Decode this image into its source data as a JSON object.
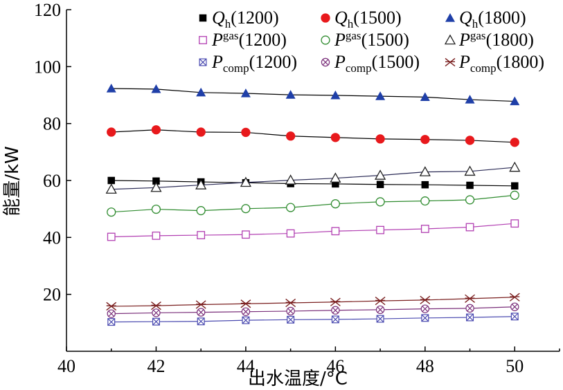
{
  "chart_data": {
    "type": "line",
    "title": "",
    "xlabel": "出水温度/°C",
    "ylabel": "能量/kW",
    "xlim": [
      40,
      51
    ],
    "ylim": [
      0,
      120
    ],
    "xticks": [
      40,
      42,
      44,
      46,
      48,
      50
    ],
    "yticks": [
      20,
      40,
      60,
      80,
      100,
      120
    ],
    "grid": false,
    "legend_position": "top",
    "x": [
      41,
      42,
      43,
      44,
      45,
      46,
      47,
      48,
      49,
      50
    ],
    "series": [
      {
        "name": "Qh(1200)",
        "symbol": "Q",
        "sub": "h",
        "rpm": "(1200)",
        "marker": "square-filled",
        "color": "#000000",
        "line_color": "#000000",
        "values": [
          60.0,
          59.8,
          59.5,
          59.2,
          58.9,
          58.8,
          58.6,
          58.5,
          58.3,
          58.1
        ]
      },
      {
        "name": "Qh(1500)",
        "symbol": "Q",
        "sub": "h",
        "rpm": "(1500)",
        "marker": "circle-filled",
        "color": "#e8191c",
        "line_color": "#000000",
        "values": [
          77.0,
          77.8,
          77.0,
          76.9,
          75.6,
          75.1,
          74.6,
          74.4,
          74.1,
          73.4
        ]
      },
      {
        "name": "Qh(1800)",
        "symbol": "Q",
        "sub": "h",
        "rpm": "(1800)",
        "marker": "triangle-filled",
        "color": "#1f3fa8",
        "line_color": "#000000",
        "values": [
          92.3,
          92.1,
          90.9,
          90.6,
          90.1,
          89.9,
          89.6,
          89.3,
          88.4,
          87.8
        ]
      },
      {
        "name": "Pgas(1200)",
        "symbol": "P",
        "sub": "gas",
        "rpm": "(1200)",
        "marker": "square-open",
        "color": "#b23fb2",
        "line_color": "#b23fb2",
        "values": [
          40.2,
          40.6,
          40.8,
          41.0,
          41.4,
          42.2,
          42.6,
          43.0,
          43.6,
          44.9
        ]
      },
      {
        "name": "Pgas(1500)",
        "symbol": "P",
        "sub": "gas",
        "rpm": "(1500)",
        "marker": "circle-open",
        "color": "#2e8b2e",
        "line_color": "#2e8b2e",
        "values": [
          48.9,
          49.9,
          49.4,
          50.1,
          50.5,
          51.8,
          52.5,
          52.8,
          53.2,
          54.8
        ]
      },
      {
        "name": "Pgas(1800)",
        "symbol": "P",
        "sub": "gas",
        "rpm": "(1800)",
        "marker": "triangle-open",
        "color": "#222222",
        "line_color": "#2a2a55",
        "values": [
          56.9,
          57.5,
          58.4,
          59.3,
          60.1,
          60.8,
          61.8,
          63.0,
          63.2,
          64.6
        ]
      },
      {
        "name": "Pcomp(1200)",
        "symbol": "P",
        "sub": "comp",
        "rpm": "(1200)",
        "marker": "square-x",
        "color": "#4a4ab0",
        "line_color": "#4a4ab0",
        "values": [
          10.3,
          10.4,
          10.5,
          10.9,
          11.1,
          11.2,
          11.4,
          11.7,
          11.9,
          12.2
        ]
      },
      {
        "name": "Pcomp(1500)",
        "symbol": "P",
        "sub": "comp",
        "rpm": "(1500)",
        "marker": "circle-x",
        "color": "#7a2f7a",
        "line_color": "#7a2f7a",
        "values": [
          13.2,
          13.5,
          13.7,
          13.9,
          14.1,
          14.4,
          14.6,
          14.9,
          15.1,
          15.6
        ]
      },
      {
        "name": "Pcomp(1800)",
        "symbol": "P",
        "sub": "comp",
        "rpm": "(1800)",
        "marker": "x-star",
        "color": "#7a1f1f",
        "line_color": "#7a1f1f",
        "values": [
          15.8,
          16.0,
          16.4,
          16.7,
          17.0,
          17.3,
          17.7,
          18.0,
          18.5,
          19.0
        ]
      }
    ]
  }
}
